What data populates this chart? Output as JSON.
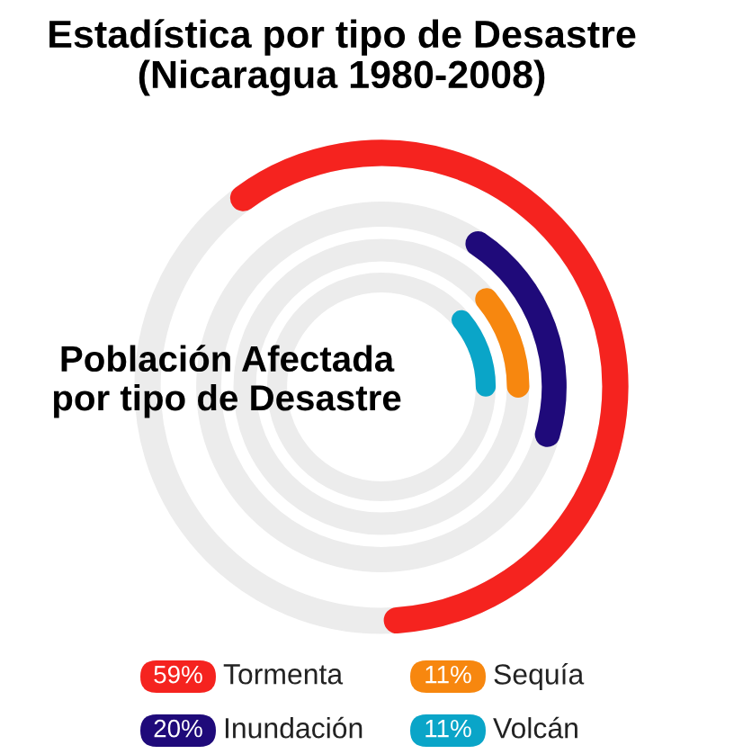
{
  "chart_data": {
    "type": "other",
    "title": "Estadística por tipo de Desastre\n(Nicaragua 1980-2008)",
    "annotations": [
      "Población Afectada\npor tipo de Desastre"
    ],
    "categories": [
      "Tormenta",
      "Inundación",
      "Sequía",
      "Volcán"
    ],
    "values": [
      59,
      20,
      11,
      11
    ],
    "value_labels": [
      "59%",
      "20%",
      "11%",
      "11%"
    ],
    "colors": [
      "#f5231f",
      "#1f0a7a",
      "#f7870f",
      "#0aa5c8"
    ]
  }
}
